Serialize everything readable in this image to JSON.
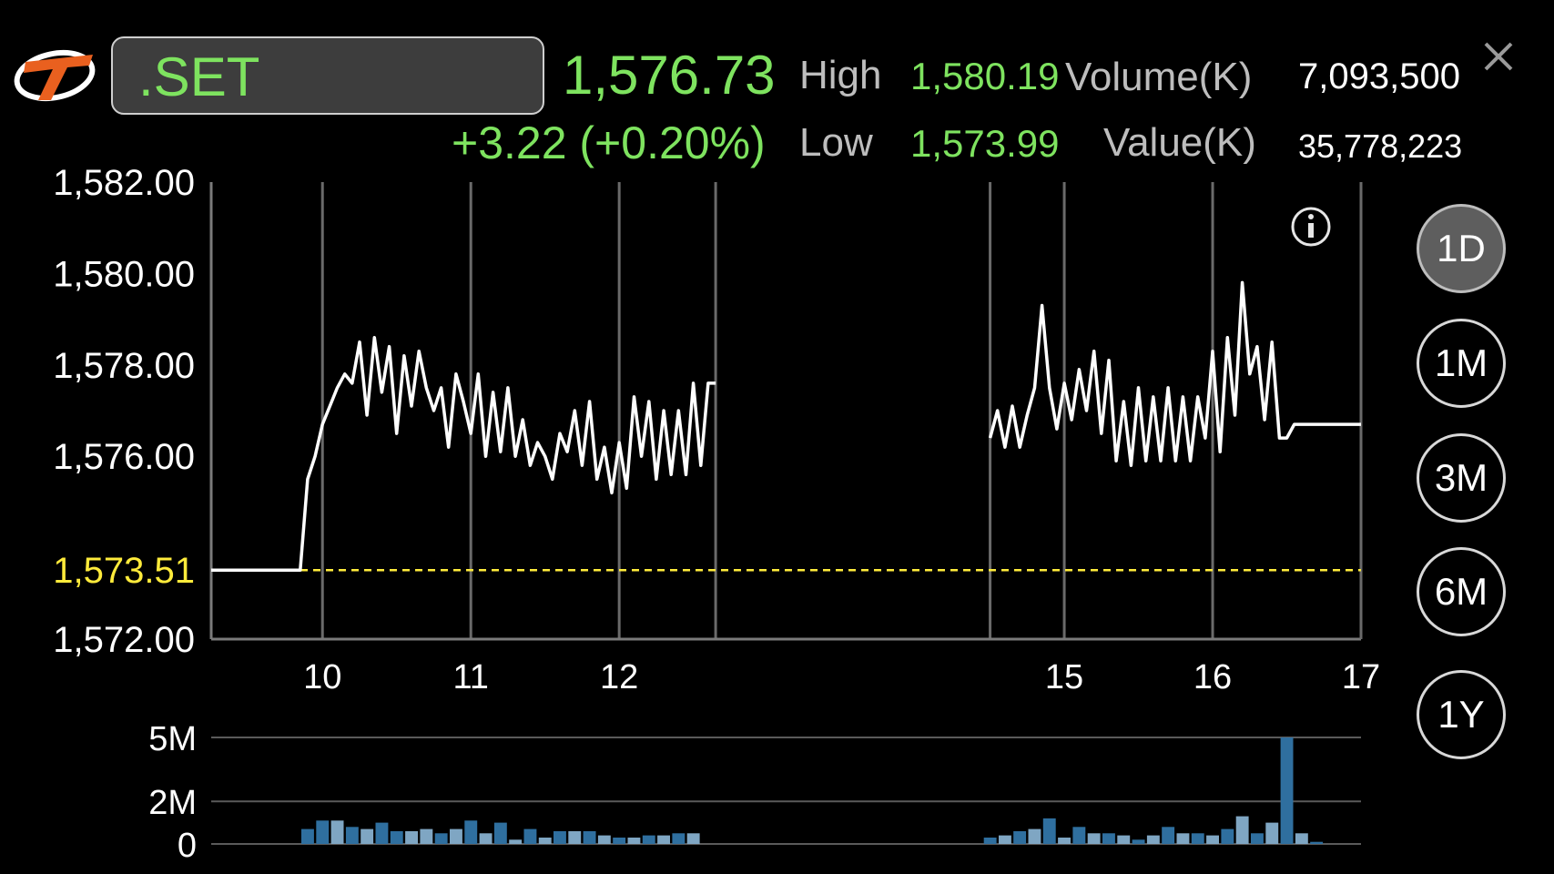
{
  "header": {
    "symbol": ".SET",
    "last": "1,576.73",
    "change": "+3.22 (+0.20%)",
    "high_label": "High",
    "high_value": "1,580.19",
    "low_label": "Low",
    "low_value": "1,573.99",
    "volume_label": "Volume(K)",
    "volume_value": "7,093,500",
    "value_label": "Value(K)",
    "value_value": "35,778,223"
  },
  "periods": [
    "1D",
    "1M",
    "3M",
    "6M",
    "1Y"
  ],
  "active_period": "1D",
  "colors": {
    "up": "#7ee35f",
    "prev_close": "#ffeb3b",
    "price_line": "#ffffff",
    "volume_up": "#2f6f9f",
    "volume_down": "#7fa6c3"
  },
  "chart_data": [
    {
      "type": "line",
      "title": "",
      "xlabel": "",
      "ylabel": "",
      "y_tick_labels": [
        "1,582.00",
        "1,580.00",
        "1,578.00",
        "1,576.00",
        "1,572.00"
      ],
      "y_ticks": [
        1582,
        1580,
        1578,
        1576,
        1572
      ],
      "x_tick_labels": [
        "10",
        "11",
        "12",
        "15",
        "16",
        "17"
      ],
      "x_ticks": [
        10,
        11,
        12,
        15,
        16,
        17
      ],
      "ylim": [
        1572,
        1582
      ],
      "xlim": [
        9.25,
        17
      ],
      "reference_line": {
        "label": "1,573.51",
        "value": 1573.51,
        "style": "dashed"
      },
      "series": [
        {
          "values": [
            [
              9.25,
              1573.51
            ],
            [
              9.85,
              1573.51
            ],
            [
              9.9,
              1575.5
            ],
            [
              9.95,
              1576.0
            ],
            [
              10.0,
              1576.7
            ],
            [
              10.05,
              1577.1
            ],
            [
              10.1,
              1577.5
            ],
            [
              10.15,
              1577.8
            ],
            [
              10.2,
              1577.6
            ],
            [
              10.25,
              1578.5
            ],
            [
              10.3,
              1576.9
            ],
            [
              10.35,
              1578.6
            ],
            [
              10.4,
              1577.4
            ],
            [
              10.45,
              1578.4
            ],
            [
              10.5,
              1576.5
            ],
            [
              10.55,
              1578.2
            ],
            [
              10.6,
              1577.1
            ],
            [
              10.65,
              1578.3
            ],
            [
              10.7,
              1577.5
            ],
            [
              10.75,
              1577.0
            ],
            [
              10.8,
              1577.5
            ],
            [
              10.85,
              1576.2
            ],
            [
              10.9,
              1577.8
            ],
            [
              10.95,
              1577.2
            ],
            [
              11.0,
              1576.5
            ],
            [
              11.05,
              1577.8
            ],
            [
              11.1,
              1576.0
            ],
            [
              11.15,
              1577.4
            ],
            [
              11.2,
              1576.1
            ],
            [
              11.25,
              1577.5
            ],
            [
              11.3,
              1576.0
            ],
            [
              11.35,
              1576.8
            ],
            [
              11.4,
              1575.8
            ],
            [
              11.45,
              1576.3
            ],
            [
              11.5,
              1576.0
            ],
            [
              11.55,
              1575.5
            ],
            [
              11.6,
              1576.5
            ],
            [
              11.65,
              1576.1
            ],
            [
              11.7,
              1577.0
            ],
            [
              11.75,
              1575.8
            ],
            [
              11.8,
              1577.2
            ],
            [
              11.85,
              1575.5
            ],
            [
              11.9,
              1576.2
            ],
            [
              11.95,
              1575.2
            ],
            [
              12.0,
              1576.3
            ],
            [
              12.05,
              1575.3
            ],
            [
              12.1,
              1577.3
            ],
            [
              12.15,
              1576.0
            ],
            [
              12.2,
              1577.2
            ],
            [
              12.25,
              1575.5
            ],
            [
              12.3,
              1577.0
            ],
            [
              12.35,
              1575.6
            ],
            [
              12.4,
              1577.0
            ],
            [
              12.45,
              1575.6
            ],
            [
              12.5,
              1577.6
            ],
            [
              12.55,
              1575.8
            ],
            [
              12.6,
              1577.6
            ],
            [
              12.65,
              1577.6
            ]
          ]
        },
        {
          "values": [
            [
              14.5,
              1576.4
            ],
            [
              14.55,
              1577.0
            ],
            [
              14.6,
              1576.2
            ],
            [
              14.65,
              1577.1
            ],
            [
              14.7,
              1576.2
            ],
            [
              14.75,
              1576.9
            ],
            [
              14.8,
              1577.5
            ],
            [
              14.85,
              1579.3
            ],
            [
              14.9,
              1577.5
            ],
            [
              14.95,
              1576.6
            ],
            [
              15.0,
              1577.6
            ],
            [
              15.05,
              1576.8
            ],
            [
              15.1,
              1577.9
            ],
            [
              15.15,
              1577.0
            ],
            [
              15.2,
              1578.3
            ],
            [
              15.25,
              1576.5
            ],
            [
              15.3,
              1578.1
            ],
            [
              15.35,
              1575.9
            ],
            [
              15.4,
              1577.2
            ],
            [
              15.45,
              1575.8
            ],
            [
              15.5,
              1577.5
            ],
            [
              15.55,
              1575.9
            ],
            [
              15.6,
              1577.3
            ],
            [
              15.65,
              1575.9
            ],
            [
              15.7,
              1577.5
            ],
            [
              15.75,
              1575.9
            ],
            [
              15.8,
              1577.3
            ],
            [
              15.85,
              1575.9
            ],
            [
              15.9,
              1577.3
            ],
            [
              15.95,
              1576.4
            ],
            [
              16.0,
              1578.3
            ],
            [
              16.05,
              1576.1
            ],
            [
              16.1,
              1578.6
            ],
            [
              16.15,
              1576.9
            ],
            [
              16.2,
              1579.8
            ],
            [
              16.25,
              1577.8
            ],
            [
              16.3,
              1578.4
            ],
            [
              16.35,
              1576.8
            ],
            [
              16.4,
              1578.5
            ],
            [
              16.45,
              1576.4
            ],
            [
              16.5,
              1576.4
            ],
            [
              16.55,
              1576.7
            ],
            [
              17.0,
              1576.7
            ]
          ]
        }
      ]
    },
    {
      "type": "bar",
      "title": "",
      "y_tick_labels": [
        "5M",
        "2M",
        "0"
      ],
      "y_ticks": [
        5,
        2,
        0
      ],
      "ylim": [
        0,
        5
      ],
      "xlim": [
        9.25,
        17
      ],
      "bars": [
        [
          9.9,
          0.7,
          "up"
        ],
        [
          10.0,
          1.1,
          "up"
        ],
        [
          10.1,
          1.1,
          "down"
        ],
        [
          10.2,
          0.8,
          "up"
        ],
        [
          10.3,
          0.7,
          "down"
        ],
        [
          10.4,
          1.0,
          "up"
        ],
        [
          10.5,
          0.6,
          "up"
        ],
        [
          10.6,
          0.6,
          "down"
        ],
        [
          10.7,
          0.7,
          "down"
        ],
        [
          10.8,
          0.5,
          "up"
        ],
        [
          10.9,
          0.7,
          "down"
        ],
        [
          11.0,
          1.1,
          "up"
        ],
        [
          11.1,
          0.5,
          "down"
        ],
        [
          11.2,
          1.0,
          "up"
        ],
        [
          11.3,
          0.2,
          "down"
        ],
        [
          11.4,
          0.7,
          "up"
        ],
        [
          11.5,
          0.3,
          "down"
        ],
        [
          11.6,
          0.6,
          "up"
        ],
        [
          11.7,
          0.6,
          "down"
        ],
        [
          11.8,
          0.6,
          "up"
        ],
        [
          11.9,
          0.4,
          "down"
        ],
        [
          12.0,
          0.3,
          "up"
        ],
        [
          12.1,
          0.3,
          "down"
        ],
        [
          12.2,
          0.4,
          "up"
        ],
        [
          12.3,
          0.4,
          "down"
        ],
        [
          12.4,
          0.5,
          "up"
        ],
        [
          12.5,
          0.5,
          "down"
        ],
        [
          14.5,
          0.3,
          "up"
        ],
        [
          14.6,
          0.4,
          "down"
        ],
        [
          14.7,
          0.6,
          "up"
        ],
        [
          14.8,
          0.7,
          "down"
        ],
        [
          14.9,
          1.2,
          "up"
        ],
        [
          15.0,
          0.3,
          "down"
        ],
        [
          15.1,
          0.8,
          "up"
        ],
        [
          15.2,
          0.5,
          "down"
        ],
        [
          15.3,
          0.5,
          "up"
        ],
        [
          15.4,
          0.4,
          "down"
        ],
        [
          15.5,
          0.2,
          "up"
        ],
        [
          15.6,
          0.4,
          "down"
        ],
        [
          15.7,
          0.8,
          "up"
        ],
        [
          15.8,
          0.5,
          "down"
        ],
        [
          15.9,
          0.5,
          "up"
        ],
        [
          16.0,
          0.4,
          "down"
        ],
        [
          16.1,
          0.7,
          "up"
        ],
        [
          16.2,
          1.3,
          "down"
        ],
        [
          16.3,
          0.5,
          "up"
        ],
        [
          16.4,
          1.0,
          "down"
        ],
        [
          16.5,
          5.0,
          "up"
        ],
        [
          16.6,
          0.5,
          "down"
        ],
        [
          16.7,
          0.1,
          "up"
        ]
      ]
    }
  ]
}
